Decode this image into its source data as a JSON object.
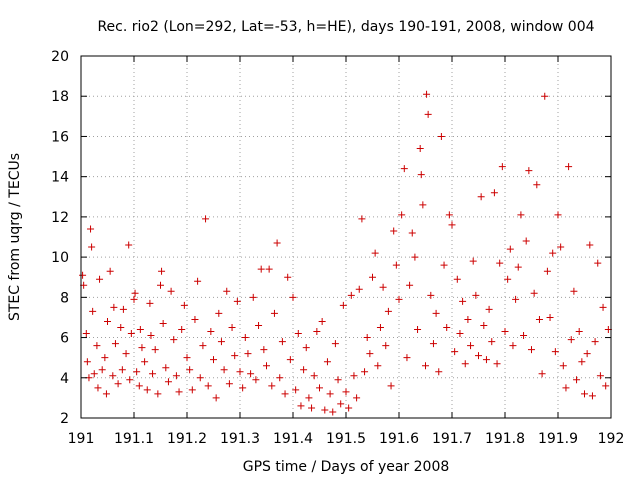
{
  "chart_data": {
    "type": "scatter",
    "title": "Rec. rio2 (Lon=292, Lat=-53, h=HE), days 190-191, 2008, window 004",
    "xlabel": "GPS time / Days of year 2008",
    "ylabel": "STEC from uqrg / TECUs",
    "xlim": [
      191,
      192
    ],
    "ylim": [
      2,
      20
    ],
    "grid": true,
    "marker": "plus",
    "color": "#cc0000",
    "x_ticks": [
      191,
      191.1,
      191.2,
      191.3,
      191.4,
      191.5,
      191.6,
      191.7,
      191.8,
      191.9,
      192
    ],
    "x_tick_labels": [
      "191",
      "191.1",
      "191.2",
      "191.3",
      "191.4",
      "191.5",
      "191.6",
      "191.7",
      "191.8",
      "191.9",
      "192"
    ],
    "y_ticks": [
      2,
      4,
      6,
      8,
      10,
      12,
      14,
      16,
      18,
      20
    ],
    "y_tick_labels": [
      "2",
      "4",
      "6",
      "8",
      "10",
      "12",
      "14",
      "16",
      "18",
      "20"
    ],
    "series": [
      {
        "points": [
          [
            191.003,
            9.1
          ],
          [
            191.005,
            8.6
          ],
          [
            191.01,
            6.2
          ],
          [
            191.012,
            4.8
          ],
          [
            191.015,
            4.0
          ],
          [
            191.018,
            11.4
          ],
          [
            191.02,
            10.5
          ],
          [
            191.022,
            7.3
          ],
          [
            191.025,
            4.2
          ],
          [
            191.03,
            5.6
          ],
          [
            191.032,
            3.5
          ],
          [
            191.035,
            8.9
          ],
          [
            191.04,
            4.4
          ],
          [
            191.045,
            5.0
          ],
          [
            191.048,
            3.2
          ],
          [
            191.05,
            6.8
          ],
          [
            191.055,
            9.3
          ],
          [
            191.06,
            4.1
          ],
          [
            191.062,
            7.5
          ],
          [
            191.065,
            5.7
          ],
          [
            191.07,
            3.7
          ],
          [
            191.075,
            6.5
          ],
          [
            191.078,
            4.4
          ],
          [
            191.08,
            7.4
          ],
          [
            191.085,
            5.2
          ],
          [
            191.09,
            10.6
          ],
          [
            191.092,
            3.9
          ],
          [
            191.095,
            6.2
          ],
          [
            191.1,
            7.9
          ],
          [
            191.102,
            8.2
          ],
          [
            191.105,
            4.3
          ],
          [
            191.11,
            3.6
          ],
          [
            191.112,
            6.4
          ],
          [
            191.115,
            5.5
          ],
          [
            191.12,
            4.8
          ],
          [
            191.125,
            3.4
          ],
          [
            191.13,
            7.7
          ],
          [
            191.132,
            6.1
          ],
          [
            191.135,
            4.2
          ],
          [
            191.14,
            5.4
          ],
          [
            191.145,
            3.2
          ],
          [
            191.15,
            8.6
          ],
          [
            191.152,
            9.3
          ],
          [
            191.155,
            6.7
          ],
          [
            191.16,
            4.5
          ],
          [
            191.165,
            3.8
          ],
          [
            191.17,
            8.3
          ],
          [
            191.175,
            5.9
          ],
          [
            191.18,
            4.1
          ],
          [
            191.185,
            3.3
          ],
          [
            191.19,
            6.4
          ],
          [
            191.195,
            7.6
          ],
          [
            191.2,
            5.0
          ],
          [
            191.205,
            4.4
          ],
          [
            191.21,
            3.4
          ],
          [
            191.215,
            6.9
          ],
          [
            191.22,
            8.8
          ],
          [
            191.225,
            4.0
          ],
          [
            191.23,
            5.6
          ],
          [
            191.235,
            11.9
          ],
          [
            191.24,
            3.6
          ],
          [
            191.245,
            6.3
          ],
          [
            191.25,
            4.9
          ],
          [
            191.255,
            3.0
          ],
          [
            191.26,
            7.2
          ],
          [
            191.265,
            5.8
          ],
          [
            191.27,
            4.4
          ],
          [
            191.275,
            8.3
          ],
          [
            191.28,
            3.7
          ],
          [
            191.285,
            6.5
          ],
          [
            191.29,
            5.1
          ],
          [
            191.295,
            7.8
          ],
          [
            191.3,
            4.3
          ],
          [
            191.305,
            3.5
          ],
          [
            191.31,
            6.0
          ],
          [
            191.315,
            5.2
          ],
          [
            191.32,
            4.2
          ],
          [
            191.325,
            8.0
          ],
          [
            191.33,
            3.9
          ],
          [
            191.335,
            6.6
          ],
          [
            191.34,
            9.4
          ],
          [
            191.345,
            5.4
          ],
          [
            191.35,
            4.6
          ],
          [
            191.355,
            9.4
          ],
          [
            191.36,
            3.6
          ],
          [
            191.365,
            7.2
          ],
          [
            191.37,
            10.7
          ],
          [
            191.375,
            4.0
          ],
          [
            191.38,
            5.8
          ],
          [
            191.385,
            3.2
          ],
          [
            191.39,
            9.0
          ],
          [
            191.395,
            4.9
          ],
          [
            191.4,
            8.0
          ],
          [
            191.405,
            3.4
          ],
          [
            191.41,
            6.2
          ],
          [
            191.415,
            2.6
          ],
          [
            191.42,
            4.4
          ],
          [
            191.425,
            5.5
          ],
          [
            191.43,
            3.0
          ],
          [
            191.435,
            2.5
          ],
          [
            191.44,
            4.1
          ],
          [
            191.445,
            6.3
          ],
          [
            191.45,
            3.5
          ],
          [
            191.455,
            6.8
          ],
          [
            191.46,
            2.4
          ],
          [
            191.465,
            4.8
          ],
          [
            191.47,
            3.2
          ],
          [
            191.475,
            2.3
          ],
          [
            191.48,
            5.7
          ],
          [
            191.485,
            3.9
          ],
          [
            191.49,
            2.7
          ],
          [
            191.495,
            7.6
          ],
          [
            191.5,
            3.3
          ],
          [
            191.505,
            2.5
          ],
          [
            191.51,
            8.1
          ],
          [
            191.515,
            4.1
          ],
          [
            191.52,
            3.0
          ],
          [
            191.525,
            8.4
          ],
          [
            191.53,
            11.9
          ],
          [
            191.535,
            4.3
          ],
          [
            191.54,
            6.0
          ],
          [
            191.545,
            5.2
          ],
          [
            191.55,
            9.0
          ],
          [
            191.555,
            10.2
          ],
          [
            191.56,
            4.6
          ],
          [
            191.565,
            6.5
          ],
          [
            191.57,
            8.5
          ],
          [
            191.575,
            5.6
          ],
          [
            191.58,
            7.3
          ],
          [
            191.585,
            3.6
          ],
          [
            191.59,
            11.3
          ],
          [
            191.595,
            9.6
          ],
          [
            191.6,
            7.9
          ],
          [
            191.605,
            12.1
          ],
          [
            191.61,
            14.4
          ],
          [
            191.615,
            5.0
          ],
          [
            191.62,
            8.6
          ],
          [
            191.625,
            11.2
          ],
          [
            191.63,
            10.0
          ],
          [
            191.635,
            6.4
          ],
          [
            191.64,
            15.4
          ],
          [
            191.642,
            14.1
          ],
          [
            191.645,
            12.6
          ],
          [
            191.65,
            4.6
          ],
          [
            191.652,
            18.1
          ],
          [
            191.655,
            17.1
          ],
          [
            191.66,
            8.1
          ],
          [
            191.665,
            5.7
          ],
          [
            191.67,
            7.2
          ],
          [
            191.675,
            4.3
          ],
          [
            191.68,
            16.0
          ],
          [
            191.685,
            9.6
          ],
          [
            191.69,
            6.5
          ],
          [
            191.695,
            12.1
          ],
          [
            191.7,
            11.6
          ],
          [
            191.705,
            5.3
          ],
          [
            191.71,
            8.9
          ],
          [
            191.715,
            6.2
          ],
          [
            191.72,
            7.8
          ],
          [
            191.725,
            4.7
          ],
          [
            191.73,
            6.9
          ],
          [
            191.735,
            5.6
          ],
          [
            191.74,
            9.8
          ],
          [
            191.745,
            8.1
          ],
          [
            191.75,
            5.1
          ],
          [
            191.755,
            13.0
          ],
          [
            191.76,
            6.6
          ],
          [
            191.765,
            4.9
          ],
          [
            191.77,
            7.4
          ],
          [
            191.775,
            5.8
          ],
          [
            191.78,
            13.2
          ],
          [
            191.785,
            4.7
          ],
          [
            191.79,
            9.7
          ],
          [
            191.795,
            14.5
          ],
          [
            191.8,
            6.3
          ],
          [
            191.805,
            8.9
          ],
          [
            191.81,
            10.4
          ],
          [
            191.815,
            5.6
          ],
          [
            191.82,
            7.9
          ],
          [
            191.825,
            9.5
          ],
          [
            191.83,
            12.1
          ],
          [
            191.835,
            6.1
          ],
          [
            191.84,
            10.8
          ],
          [
            191.845,
            14.3
          ],
          [
            191.85,
            5.4
          ],
          [
            191.855,
            8.2
          ],
          [
            191.86,
            13.6
          ],
          [
            191.865,
            6.9
          ],
          [
            191.87,
            4.2
          ],
          [
            191.875,
            18.0
          ],
          [
            191.88,
            9.3
          ],
          [
            191.885,
            7.0
          ],
          [
            191.89,
            10.2
          ],
          [
            191.895,
            5.3
          ],
          [
            191.9,
            12.1
          ],
          [
            191.905,
            10.5
          ],
          [
            191.91,
            4.6
          ],
          [
            191.915,
            3.5
          ],
          [
            191.92,
            14.5
          ],
          [
            191.925,
            5.9
          ],
          [
            191.93,
            8.3
          ],
          [
            191.935,
            3.9
          ],
          [
            191.94,
            6.3
          ],
          [
            191.945,
            4.8
          ],
          [
            191.95,
            3.2
          ],
          [
            191.955,
            5.2
          ],
          [
            191.96,
            10.6
          ],
          [
            191.965,
            3.1
          ],
          [
            191.97,
            5.8
          ],
          [
            191.975,
            9.7
          ],
          [
            191.98,
            4.1
          ],
          [
            191.985,
            7.5
          ],
          [
            191.99,
            3.6
          ],
          [
            191.995,
            6.4
          ]
        ]
      }
    ]
  }
}
